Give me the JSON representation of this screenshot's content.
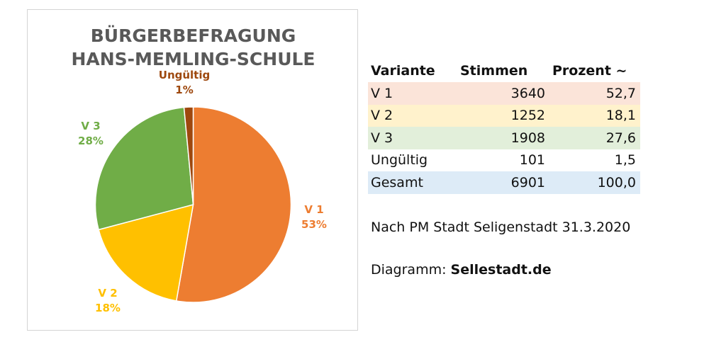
{
  "chart_data": {
    "type": "pie",
    "title": [
      "BÜRGERBEFRAGUNG",
      "HANS-MEMLING-SCHULE"
    ],
    "slices": [
      {
        "name": "V 1",
        "value": 52.7,
        "label": "53%",
        "color": "#ED7D31",
        "label_color": "#ED7D31"
      },
      {
        "name": "V 2",
        "value": 18.1,
        "label": "18%",
        "color": "#FFC000",
        "label_color": "#FFC000"
      },
      {
        "name": "V 3",
        "value": 27.6,
        "label": "28%",
        "color": "#70AD47",
        "label_color": "#70AD47"
      },
      {
        "name": "Ungültig",
        "value": 1.5,
        "label": "1%",
        "color": "#9E480E",
        "label_color": "#9E480E"
      }
    ],
    "start_angle_deg": 0,
    "direction": "clockwise"
  },
  "table": {
    "headers": [
      "Variante",
      "Stimmen",
      "Prozent ~"
    ],
    "rows": [
      {
        "cells": [
          "V 1",
          "3640",
          "52,7"
        ],
        "bg": "#FBE4D9"
      },
      {
        "cells": [
          "V 2",
          "1252",
          "18,1"
        ],
        "bg": "#FFF2CC"
      },
      {
        "cells": [
          "V 3",
          "1908",
          "27,6"
        ],
        "bg": "#E2EFDA"
      },
      {
        "cells": [
          "Ungültig",
          "101",
          "1,5"
        ],
        "bg": "#FFFFFF"
      },
      {
        "cells": [
          "Gesamt",
          "6901",
          "100,0"
        ],
        "bg": "#DDEBF7"
      }
    ]
  },
  "source": "Nach PM Stadt Seligenstadt 31.3.2020",
  "credit": {
    "prefix": "Diagramm: ",
    "site": "Sellestadt.de"
  }
}
